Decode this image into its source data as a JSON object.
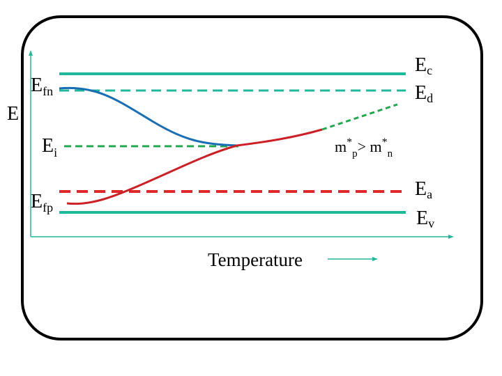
{
  "diagram": {
    "axis_y_label": "E",
    "axis_x_label": "Temperature",
    "levels": {
      "ec": {
        "main": "E",
        "sub": "c"
      },
      "ed": {
        "main": "E",
        "sub": "d"
      },
      "ea": {
        "main": "E",
        "sub": "a"
      },
      "ev": {
        "main": "E",
        "sub": "v"
      },
      "efn": {
        "main": "E",
        "sub": "fn"
      },
      "ei": {
        "main": "E",
        "sub": "i"
      },
      "efp": {
        "main": "E",
        "sub": "fp"
      }
    },
    "mass_relation": {
      "m1": "m",
      "star1": "*",
      "sub1": "p",
      "gt": "> ",
      "m2": "m",
      "star2": "*",
      "sub2": "n"
    },
    "colors": {
      "band_edge": "#1fb89b",
      "donor_level": "#1fb89b",
      "intrinsic": "#22a94e",
      "acceptor_level": "#e0262b",
      "efn_curve": "#1a6fb4",
      "efp_curve": "#cc1f26",
      "frame": "#000000",
      "axes": "#1fb89b"
    }
  }
}
